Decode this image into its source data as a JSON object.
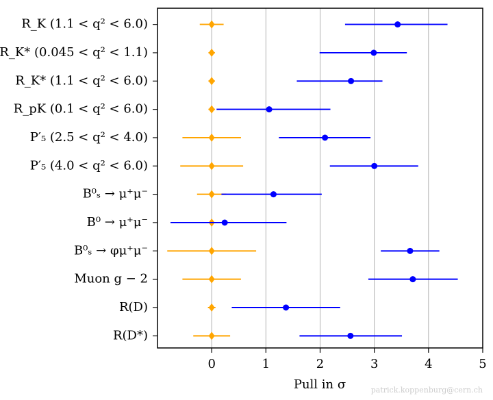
{
  "chart_data": {
    "type": "errorbar",
    "categories": [
      "R_K (1.1 < q² < 6.0)",
      "R_K* (0.045 < q² < 1.1)",
      "R_K* (1.1 < q² < 6.0)",
      "R_pK (0.1 < q² < 6.0)",
      "P′₅ (2.5 < q² < 4.0)",
      "P′₅ (4.0 < q² < 6.0)",
      "B⁰ₛ → μ⁺μ⁻",
      "B⁰ → μ⁺μ⁻",
      "B⁰ₛ → φμ⁺μ⁻",
      "Muon g − 2",
      "R(D)",
      "R(D*)"
    ],
    "series": [
      {
        "color": "#ffa500",
        "marker": "diamond",
        "values": [
          0,
          0,
          0,
          0,
          0,
          0,
          0,
          0,
          0,
          0,
          0,
          0
        ],
        "error_low": [
          0.22,
          0.06,
          0.06,
          0.06,
          0.54,
          0.58,
          0.27,
          0.06,
          0.82,
          0.54,
          0.07,
          0.34
        ],
        "error_high": [
          0.22,
          0.06,
          0.06,
          0.06,
          0.54,
          0.58,
          0.27,
          0.06,
          0.82,
          0.54,
          0.07,
          0.34
        ]
      },
      {
        "color": "#0000ff",
        "marker": "circle",
        "values": [
          3.43,
          2.99,
          2.57,
          1.06,
          2.09,
          3.0,
          1.14,
          0.24,
          3.66,
          3.71,
          1.37,
          2.56
        ],
        "error_low": [
          0.97,
          1.0,
          1.0,
          0.97,
          0.85,
          0.82,
          0.96,
          1.0,
          0.54,
          0.82,
          1.0,
          0.94
        ],
        "error_high": [
          0.92,
          0.61,
          0.58,
          1.13,
          0.84,
          0.81,
          0.89,
          1.14,
          0.54,
          0.83,
          1.0,
          0.95
        ]
      }
    ],
    "x_label": "Pull in σ",
    "xlim": [
      -1,
      5
    ],
    "xticks": [
      0,
      1,
      2,
      3,
      4,
      5
    ],
    "grid": true,
    "watermark": "patrick.koppenburg@cern.ch"
  }
}
